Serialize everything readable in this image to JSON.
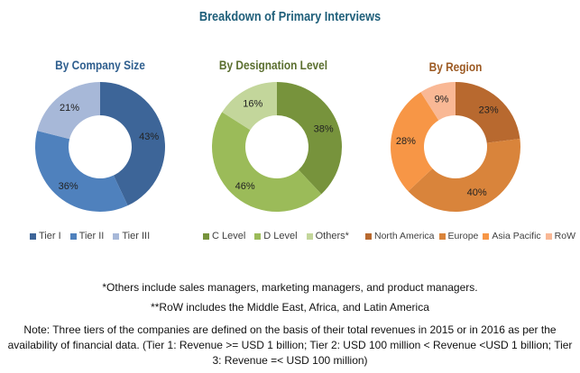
{
  "chart_data": {
    "title": "Breakdown of Primary Interviews",
    "charts": [
      {
        "type": "pie",
        "variant": "donut",
        "title": "By Company Size",
        "title_color": "#2E5E8E",
        "categories": [
          "Tier I",
          "Tier II",
          "Tier III"
        ],
        "values": [
          43,
          36,
          21
        ],
        "labels": [
          "43%",
          "36%",
          "21%"
        ],
        "colors": [
          "#3D6598",
          "#4F81BD",
          "#A7B8D8"
        ],
        "legend": "bottom"
      },
      {
        "type": "pie",
        "variant": "donut",
        "title": "By Designation Level",
        "title_color": "#5A6E2E",
        "categories": [
          "C Level",
          "D Level",
          "Others*"
        ],
        "values": [
          38,
          46,
          16
        ],
        "labels": [
          "38%",
          "46%",
          "16%"
        ],
        "colors": [
          "#77933C",
          "#9BBB59",
          "#C3D69B"
        ],
        "legend": "bottom"
      },
      {
        "type": "pie",
        "variant": "donut",
        "title": "By Region",
        "title_color": "#9C5A23",
        "categories": [
          "North America",
          "Europe",
          "Asia Pacific",
          "RoW"
        ],
        "values": [
          23,
          40,
          28,
          9
        ],
        "labels": [
          "23%",
          "40%",
          "28%",
          "9%"
        ],
        "colors": [
          "#B8692F",
          "#D9843B",
          "#F79646",
          "#F9B895"
        ],
        "legend": "bottom"
      }
    ]
  },
  "notes": [
    "*Others include sales managers, marketing managers, and product managers.",
    "**RoW includes the Middle East, Africa, and Latin America",
    "Note: Three tiers of the companies are defined on the basis of their total revenues in 2015 or in 2016 as per the availability of financial data. (Tier 1: Revenue >= USD 1 billion; Tier 2: USD 100 million < Revenue <USD 1 billion; Tier 3: Revenue =< USD 100 million)"
  ]
}
